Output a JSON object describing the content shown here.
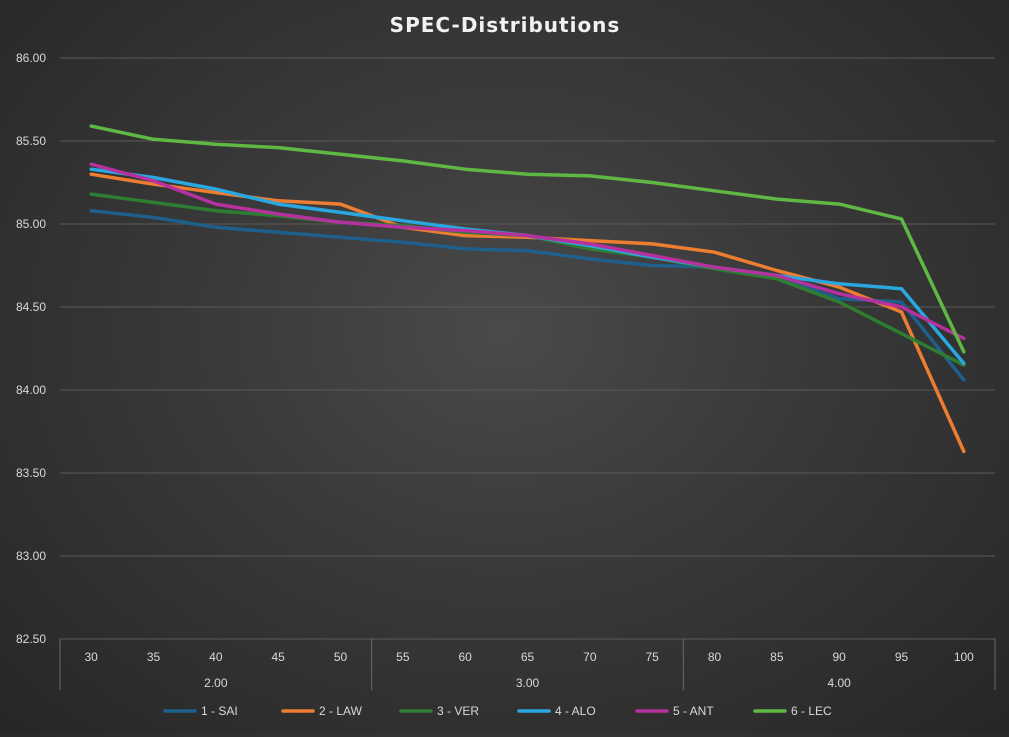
{
  "chart_data": {
    "type": "line",
    "title": "SPEC-Distributions",
    "xlabel": "",
    "ylabel": "",
    "ylim": [
      82.5,
      86.0
    ],
    "ytick_step": 0.5,
    "ytick_labels": [
      "82.50",
      "83.00",
      "83.50",
      "84.00",
      "84.50",
      "85.00",
      "85.50",
      "86.00"
    ],
    "categories": [
      "30",
      "35",
      "40",
      "45",
      "50",
      "55",
      "60",
      "65",
      "70",
      "75",
      "80",
      "85",
      "90",
      "95",
      "100"
    ],
    "groups": [
      {
        "label": "2.00",
        "count": 5
      },
      {
        "label": "3.00",
        "count": 5
      },
      {
        "label": "4.00",
        "count": 5
      }
    ],
    "legend_position": "bottom",
    "grid": true,
    "series": [
      {
        "name": "1 - SAI",
        "color": "#1f5f8b",
        "values": [
          85.08,
          85.04,
          84.98,
          84.95,
          84.92,
          84.89,
          84.85,
          84.84,
          84.79,
          84.75,
          84.74,
          84.68,
          84.55,
          84.53,
          84.06
        ]
      },
      {
        "name": "2 - LAW",
        "color": "#ed7d31",
        "values": [
          85.3,
          85.24,
          85.19,
          85.14,
          85.12,
          84.98,
          84.93,
          84.92,
          84.9,
          84.88,
          84.83,
          84.72,
          84.62,
          84.47,
          83.63
        ]
      },
      {
        "name": "3 - VER",
        "color": "#2e7d32",
        "values": [
          85.18,
          85.13,
          85.08,
          85.05,
          85.01,
          84.99,
          84.95,
          84.93,
          84.85,
          84.8,
          84.73,
          84.67,
          84.53,
          84.34,
          84.15
        ]
      },
      {
        "name": "4 - ALO",
        "color": "#29a8e0",
        "values": [
          85.33,
          85.28,
          85.21,
          85.12,
          85.07,
          85.02,
          84.97,
          84.93,
          84.87,
          84.8,
          84.74,
          84.69,
          84.64,
          84.61,
          84.16
        ]
      },
      {
        "name": "5 - ANT",
        "color": "#b5319e",
        "values": [
          85.36,
          85.26,
          85.12,
          85.06,
          85.01,
          84.98,
          84.96,
          84.93,
          84.88,
          84.81,
          84.74,
          84.69,
          84.58,
          84.5,
          84.31
        ]
      },
      {
        "name": "6 - LEC",
        "color": "#5fb843",
        "values": [
          85.59,
          85.51,
          85.48,
          85.46,
          85.42,
          85.38,
          85.33,
          85.3,
          85.29,
          85.25,
          85.2,
          85.15,
          85.12,
          85.03,
          84.23
        ]
      }
    ]
  }
}
